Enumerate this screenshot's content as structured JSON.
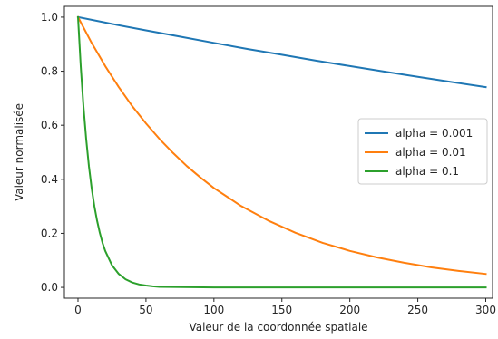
{
  "chart_data": {
    "type": "line",
    "xlabel": "Valeur de la coordonnée spatiale",
    "ylabel": "Valeur normalisée",
    "xlim": [
      -10,
      305
    ],
    "ylim": [
      -0.04,
      1.04
    ],
    "x_ticks": [
      0,
      50,
      100,
      150,
      200,
      250,
      300
    ],
    "x_tick_labels": [
      "0",
      "50",
      "100",
      "150",
      "200",
      "250",
      "300"
    ],
    "y_ticks": [
      0.0,
      0.2,
      0.4,
      0.6,
      0.8,
      1.0
    ],
    "y_tick_labels": [
      "0.0",
      "0.2",
      "0.4",
      "0.6",
      "0.8",
      "1.0"
    ],
    "grid": false,
    "legend_position": "center-right",
    "series": [
      {
        "name": "alpha = 0.001",
        "color": "#1f77b4",
        "x": [
          0,
          25,
          50,
          75,
          100,
          125,
          150,
          175,
          200,
          225,
          250,
          275,
          300
        ],
        "values": [
          1.0,
          0.975,
          0.951,
          0.928,
          0.905,
          0.882,
          0.861,
          0.839,
          0.819,
          0.799,
          0.779,
          0.76,
          0.741
        ]
      },
      {
        "name": "alpha = 0.01",
        "color": "#ff7f0e",
        "x": [
          0,
          10,
          20,
          30,
          40,
          50,
          60,
          70,
          80,
          90,
          100,
          120,
          140,
          160,
          180,
          200,
          220,
          240,
          260,
          280,
          300
        ],
        "values": [
          1.0,
          0.905,
          0.819,
          0.741,
          0.67,
          0.607,
          0.549,
          0.497,
          0.449,
          0.407,
          0.368,
          0.301,
          0.247,
          0.202,
          0.165,
          0.135,
          0.111,
          0.091,
          0.074,
          0.061,
          0.05
        ]
      },
      {
        "name": "alpha = 0.1",
        "color": "#2ca02c",
        "x": [
          0,
          2,
          4,
          6,
          8,
          10,
          12,
          14,
          16,
          18,
          20,
          25,
          30,
          35,
          40,
          45,
          50,
          55,
          60,
          100,
          150,
          200,
          250,
          300
        ],
        "values": [
          1.0,
          0.819,
          0.67,
          0.549,
          0.449,
          0.368,
          0.301,
          0.247,
          0.202,
          0.165,
          0.135,
          0.082,
          0.05,
          0.03,
          0.018,
          0.011,
          0.007,
          0.004,
          0.002,
          0.0,
          0.0,
          0.0,
          0.0,
          0.0
        ]
      }
    ]
  }
}
